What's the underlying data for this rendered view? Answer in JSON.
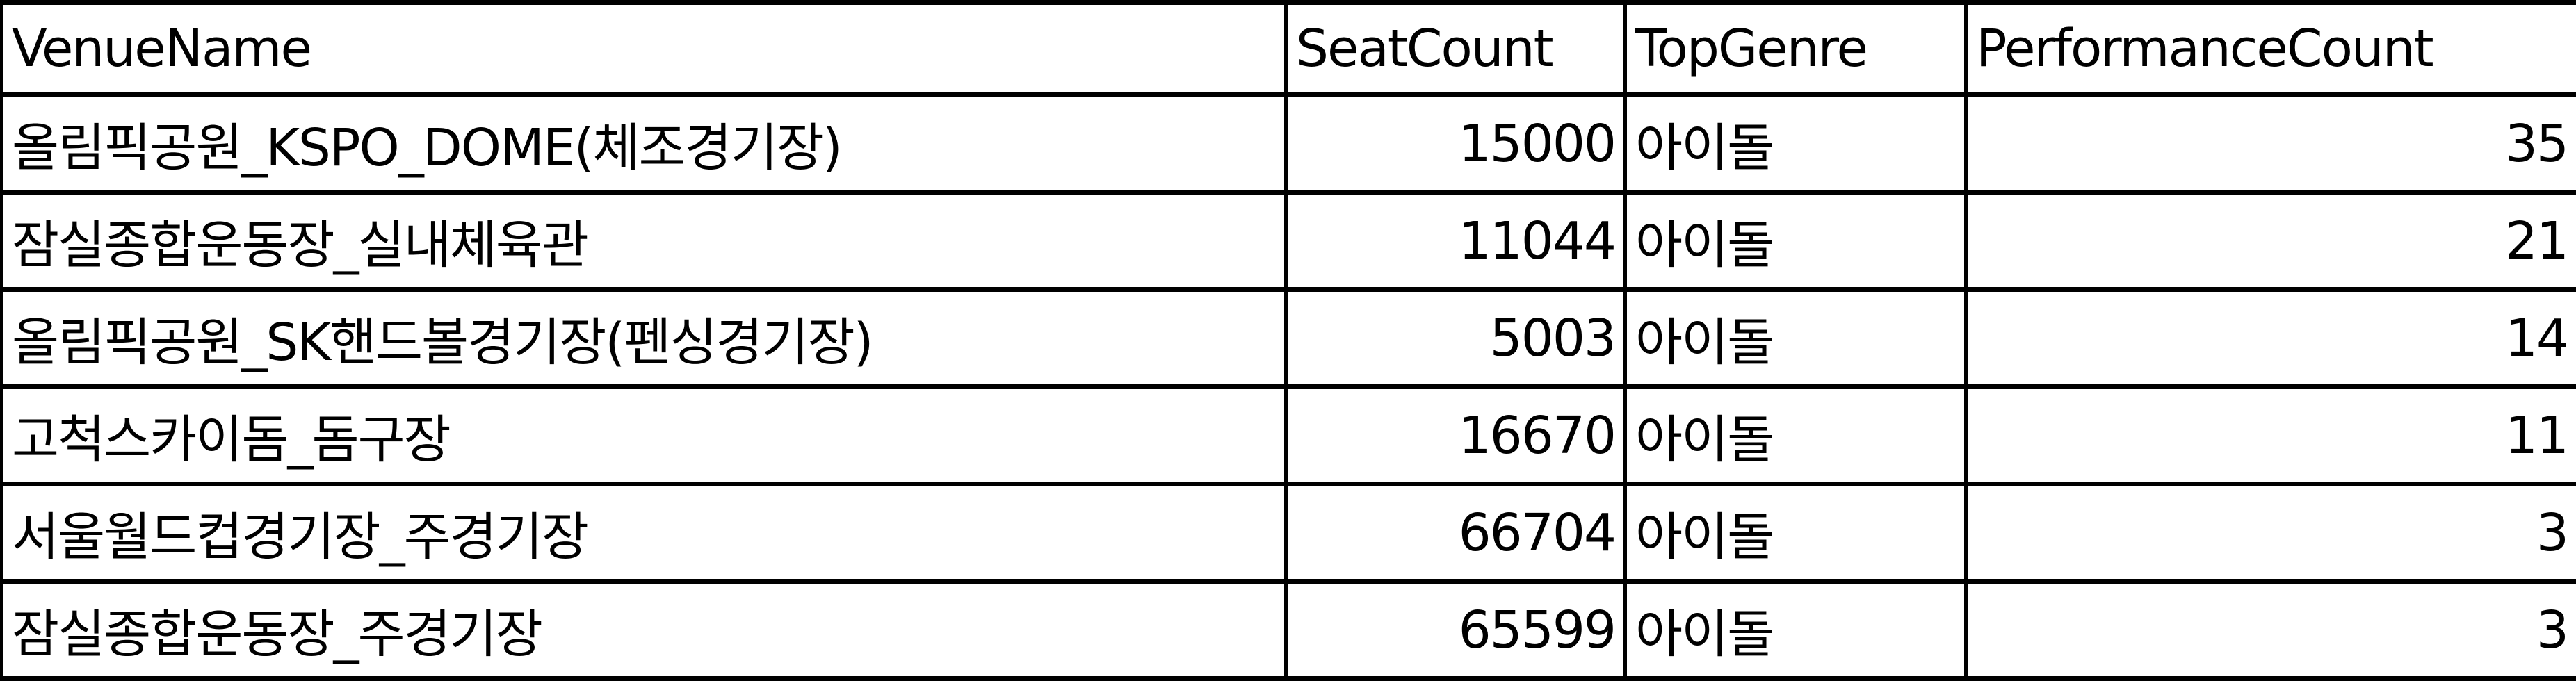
{
  "table": {
    "columns": [
      "VenueName",
      "SeatCount",
      "TopGenre",
      "PerformanceCount"
    ],
    "rows": [
      {
        "VenueName": "올림픽공원_KSPO_DOME(체조경기장)",
        "SeatCount": "15000",
        "TopGenre": "아이돌",
        "PerformanceCount": "35"
      },
      {
        "VenueName": "잠실종합운동장_실내체육관",
        "SeatCount": "11044",
        "TopGenre": "아이돌",
        "PerformanceCount": "21"
      },
      {
        "VenueName": "올림픽공원_SK핸드볼경기장(펜싱경기장)",
        "SeatCount": "5003",
        "TopGenre": "아이돌",
        "PerformanceCount": "14"
      },
      {
        "VenueName": "고척스카이돔_돔구장",
        "SeatCount": "16670",
        "TopGenre": "아이돌",
        "PerformanceCount": "11"
      },
      {
        "VenueName": "서울월드컵경기장_주경기장",
        "SeatCount": "66704",
        "TopGenre": "아이돌",
        "PerformanceCount": "3"
      },
      {
        "VenueName": "잠실종합운동장_주경기장",
        "SeatCount": "65599",
        "TopGenre": "아이돌",
        "PerformanceCount": "3"
      }
    ]
  }
}
